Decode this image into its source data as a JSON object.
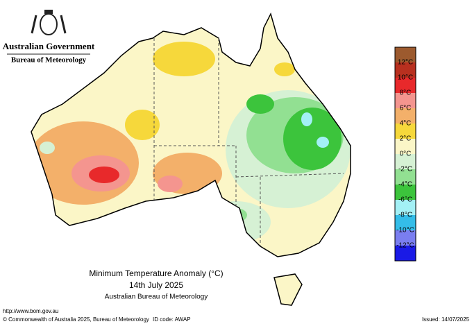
{
  "header": {
    "government": "Australian Government",
    "agency": "Bureau of Meteorology"
  },
  "legend": {
    "labels": [
      "12°C",
      "10°C",
      "8°C",
      "6°C",
      "4°C",
      "2°C",
      "0°C",
      "-2°C",
      "-4°C",
      "-6°C",
      "-8°C",
      "-10°C",
      "-12°C"
    ],
    "colors": [
      "#9c5a2e",
      "#b8301f",
      "#e8292b",
      "#f4958f",
      "#f3b06a",
      "#f6d83b",
      "#fbf6c7",
      "#d6f1d4",
      "#92e092",
      "#3cc43c",
      "#a3f0f5",
      "#34bde8",
      "#7a7ef0",
      "#1a1ae6"
    ]
  },
  "caption": {
    "title": "Minimum Temperature Anomaly (°C)",
    "date": "14th July 2025",
    "source": "Australian Bureau of Meteorology"
  },
  "footer": {
    "url": "http://www.bom.gov.au",
    "copyright": "© Commonwealth of Australia 2025, Bureau of Meteorology",
    "id_code": "ID code: AWAP",
    "issued": "Issued: 14/07/2025"
  }
}
